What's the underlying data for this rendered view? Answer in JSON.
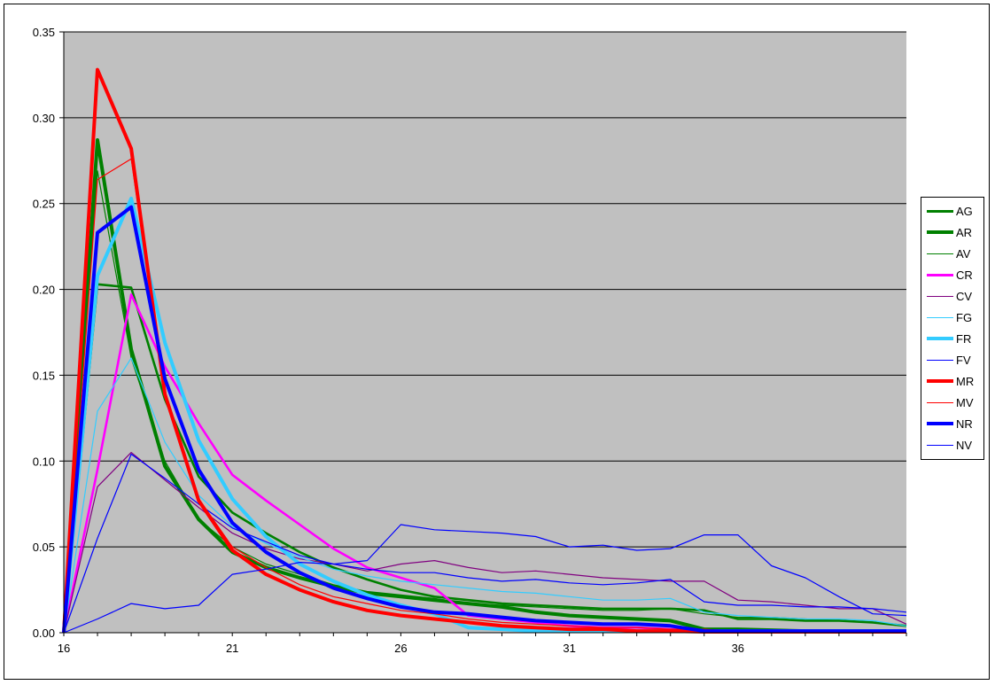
{
  "chart_data": {
    "type": "line",
    "title": "",
    "xlabel": "",
    "ylabel": "",
    "x": [
      16,
      17,
      18,
      19,
      20,
      21,
      22,
      23,
      24,
      25,
      26,
      27,
      28,
      29,
      30,
      31,
      32,
      33,
      34,
      35,
      36,
      37,
      38,
      39,
      40,
      41
    ],
    "xlim": [
      16,
      41
    ],
    "ylim": [
      0,
      0.35
    ],
    "x_ticks": [
      "16",
      "21",
      "26",
      "31",
      "36"
    ],
    "x_tick_values": [
      16,
      21,
      26,
      31,
      36
    ],
    "y_ticks": [
      "0.00",
      "0.05",
      "0.10",
      "0.15",
      "0.20",
      "0.25",
      "0.30",
      "0.35"
    ],
    "y_tick_values": [
      0,
      0.05,
      0.1,
      0.15,
      0.2,
      0.25,
      0.3,
      0.35
    ],
    "plot_background": "#c0c0c0",
    "grid": "horizontal",
    "legend_position": "right",
    "series": [
      {
        "name": "AG",
        "color": "#008000",
        "weight": "medium",
        "values": [
          0,
          0.203,
          0.201,
          0.136,
          0.091,
          0.07,
          0.058,
          0.047,
          0.038,
          0.031,
          0.025,
          0.021,
          0.019,
          0.017,
          0.016,
          0.015,
          0.014,
          0.014,
          0.014,
          0.013,
          0.008,
          0.008,
          0.007,
          0.007,
          0.006,
          0.004
        ]
      },
      {
        "name": "AR",
        "color": "#008000",
        "weight": "thick",
        "values": [
          0,
          0.287,
          0.165,
          0.097,
          0.066,
          0.047,
          0.038,
          0.032,
          0.027,
          0.023,
          0.021,
          0.019,
          0.017,
          0.015,
          0.012,
          0.01,
          0.009,
          0.008,
          0.007,
          0.002,
          0.002,
          0.0015,
          0.001,
          0.001,
          0.001,
          0.001
        ]
      },
      {
        "name": "AV",
        "color": "#008000",
        "weight": "thin",
        "values": [
          0,
          0.269,
          0.16,
          0.1,
          0.066,
          0.05,
          0.04,
          0.034,
          0.028,
          0.024,
          0.022,
          0.02,
          0.017,
          0.016,
          0.015,
          0.014,
          0.013,
          0.013,
          0.014,
          0.011,
          0.009,
          0.009,
          0.008,
          0.007,
          0.006,
          0.004
        ]
      },
      {
        "name": "CR",
        "color": "#ff00ff",
        "weight": "medium",
        "values": [
          0,
          0.095,
          0.197,
          0.155,
          0.122,
          0.092,
          0.077,
          0.063,
          0.049,
          0.038,
          0.032,
          0.026,
          0.01,
          0.008,
          0.006,
          0.004,
          0.003,
          0.003,
          0.002,
          0.001,
          0.001,
          0.001,
          0.001,
          0.001,
          0.001,
          0.001
        ]
      },
      {
        "name": "CV",
        "color": "#800080",
        "weight": "thin",
        "values": [
          0,
          0.085,
          0.105,
          0.089,
          0.073,
          0.058,
          0.049,
          0.043,
          0.04,
          0.036,
          0.04,
          0.042,
          0.038,
          0.035,
          0.036,
          0.034,
          0.032,
          0.031,
          0.03,
          0.03,
          0.019,
          0.018,
          0.016,
          0.014,
          0.014,
          0.005
        ]
      },
      {
        "name": "FG",
        "color": "#33ccff",
        "weight": "thin",
        "values": [
          0,
          0.129,
          0.16,
          0.111,
          0.08,
          0.062,
          0.052,
          0.044,
          0.037,
          0.033,
          0.03,
          0.028,
          0.026,
          0.024,
          0.023,
          0.021,
          0.019,
          0.019,
          0.02,
          0.012,
          0.01,
          0.009,
          0.008,
          0.008,
          0.007,
          0.004
        ]
      },
      {
        "name": "FR",
        "color": "#33ccff",
        "weight": "thick",
        "values": [
          0,
          0.208,
          0.253,
          0.169,
          0.112,
          0.078,
          0.056,
          0.04,
          0.03,
          0.022,
          0.016,
          0.011,
          0.003,
          0.002,
          0.001,
          0.001,
          0.001,
          0.001,
          0.001,
          0.001,
          0.001,
          0.001,
          0.001,
          0.001,
          0.001,
          0.001
        ]
      },
      {
        "name": "FV",
        "color": "#0000ff",
        "weight": "thin",
        "values": [
          0,
          0.055,
          0.104,
          0.09,
          0.075,
          0.061,
          0.053,
          0.045,
          0.04,
          0.037,
          0.035,
          0.035,
          0.032,
          0.03,
          0.031,
          0.029,
          0.028,
          0.029,
          0.031,
          0.018,
          0.016,
          0.016,
          0.015,
          0.015,
          0.014,
          0.012
        ]
      },
      {
        "name": "MR",
        "color": "#ff0000",
        "weight": "thick",
        "values": [
          0,
          0.328,
          0.282,
          0.139,
          0.077,
          0.048,
          0.034,
          0.025,
          0.018,
          0.013,
          0.01,
          0.008,
          0.006,
          0.004,
          0.003,
          0.002,
          0.002,
          0.001,
          0.001,
          0.0005,
          0.0005,
          0.0005,
          0.0005,
          0.0005,
          0.0005,
          0.0005
        ]
      },
      {
        "name": "MV",
        "color": "#ff0000",
        "weight": "thin",
        "values": [
          0,
          0.264,
          0.276,
          0.14,
          0.078,
          0.05,
          0.038,
          0.028,
          0.021,
          0.017,
          0.013,
          0.011,
          0.008,
          0.006,
          0.005,
          0.004,
          0.003,
          0.003,
          0.002,
          0.002,
          0.001,
          0.001,
          0.001,
          0.001,
          0.001,
          0.001
        ]
      },
      {
        "name": "NR",
        "color": "#0000ff",
        "weight": "thick",
        "values": [
          0,
          0.233,
          0.248,
          0.148,
          0.095,
          0.064,
          0.047,
          0.035,
          0.026,
          0.02,
          0.015,
          0.012,
          0.011,
          0.009,
          0.007,
          0.006,
          0.005,
          0.005,
          0.004,
          0.001,
          0.001,
          0.001,
          0.001,
          0.001,
          0.001,
          0.001
        ]
      },
      {
        "name": "NV",
        "color": "#0000ff",
        "weight": "thin",
        "values": [
          0,
          0.008,
          0.017,
          0.014,
          0.016,
          0.034,
          0.037,
          0.041,
          0.04,
          0.042,
          0.063,
          0.06,
          0.059,
          0.058,
          0.056,
          0.05,
          0.051,
          0.048,
          0.049,
          0.057,
          0.057,
          0.039,
          0.032,
          0.021,
          0.011,
          0.01
        ]
      }
    ]
  }
}
